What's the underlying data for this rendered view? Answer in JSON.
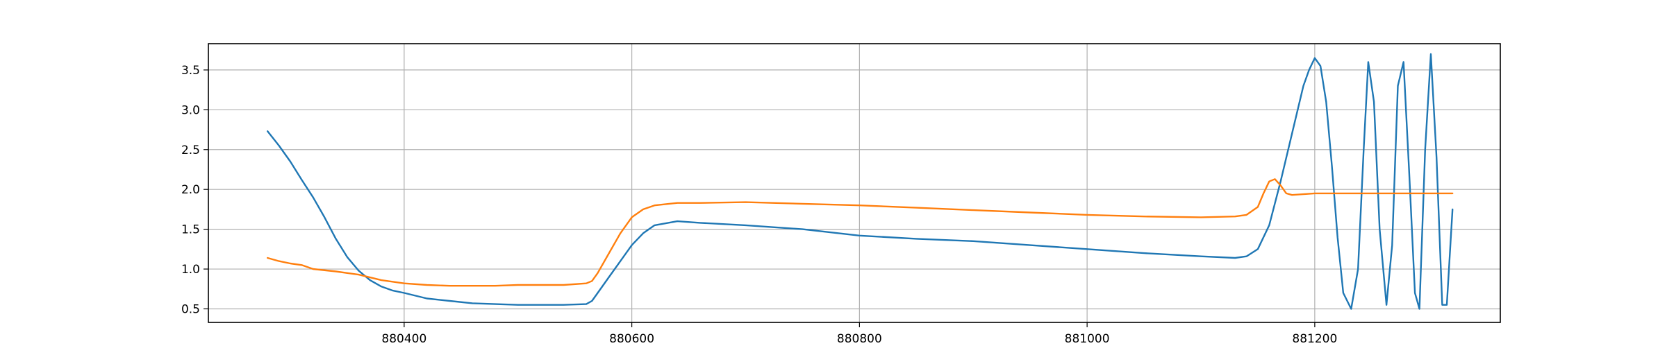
{
  "chart_data": {
    "type": "line",
    "title": "",
    "xlabel": "",
    "ylabel": "",
    "xlim": [
      880228,
      881363
    ],
    "ylim": [
      0.33,
      3.83
    ],
    "grid": true,
    "xticks": [
      880400,
      880600,
      880800,
      881000,
      881200
    ],
    "yticks": [
      0.5,
      1.0,
      1.5,
      2.0,
      2.5,
      3.0,
      3.5
    ],
    "xtick_labels": [
      "880400",
      "880600",
      "880800",
      "881000",
      "881200"
    ],
    "ytick_labels": [
      "0.5",
      "1.0",
      "1.5",
      "2.0",
      "2.5",
      "3.0",
      "3.5"
    ],
    "series": [
      {
        "color": "#1f77b4",
        "x": [
          880280,
          880290,
          880300,
          880310,
          880320,
          880330,
          880340,
          880350,
          880360,
          880370,
          880380,
          880390,
          880400,
          880420,
          880440,
          880460,
          880480,
          880500,
          880520,
          880540,
          880560,
          880565,
          880570,
          880580,
          880590,
          880600,
          880610,
          880620,
          880640,
          880660,
          880700,
          880750,
          880800,
          880850,
          880900,
          880950,
          881000,
          881050,
          881100,
          881130,
          881140,
          881150,
          881160,
          881170,
          881180,
          881190,
          881195,
          881200,
          881205,
          881210,
          881215,
          881220,
          881225,
          881232,
          881238,
          881243,
          881247,
          881252,
          881257,
          881263,
          881268,
          881273,
          881278,
          881283,
          881288,
          881292,
          881297,
          881302,
          881307,
          881312,
          881316,
          881321
        ],
        "y": [
          2.73,
          2.55,
          2.35,
          2.12,
          1.9,
          1.65,
          1.38,
          1.15,
          0.98,
          0.86,
          0.78,
          0.73,
          0.7,
          0.63,
          0.6,
          0.57,
          0.56,
          0.55,
          0.55,
          0.55,
          0.56,
          0.6,
          0.7,
          0.9,
          1.1,
          1.3,
          1.45,
          1.55,
          1.6,
          1.58,
          1.55,
          1.5,
          1.42,
          1.38,
          1.35,
          1.3,
          1.25,
          1.2,
          1.16,
          1.14,
          1.16,
          1.25,
          1.55,
          2.1,
          2.7,
          3.3,
          3.5,
          3.65,
          3.55,
          3.1,
          2.3,
          1.4,
          0.7,
          0.5,
          1.0,
          2.5,
          3.6,
          3.1,
          1.5,
          0.55,
          1.3,
          3.3,
          3.6,
          2.2,
          0.7,
          0.5,
          2.5,
          3.7,
          2.4,
          0.55,
          0.55,
          1.75
        ]
      },
      {
        "color": "#ff7f0e",
        "x": [
          880280,
          880290,
          880300,
          880310,
          880320,
          880340,
          880360,
          880380,
          880400,
          880420,
          880440,
          880460,
          880480,
          880500,
          880520,
          880540,
          880560,
          880565,
          880570,
          880580,
          880590,
          880600,
          880610,
          880620,
          880640,
          880660,
          880700,
          880750,
          880800,
          880850,
          880900,
          880950,
          881000,
          881050,
          881100,
          881130,
          881140,
          881150,
          881155,
          881160,
          881165,
          881170,
          881175,
          881180,
          881200,
          881250,
          881300,
          881321
        ],
        "y": [
          1.14,
          1.1,
          1.07,
          1.05,
          1.0,
          0.97,
          0.93,
          0.86,
          0.82,
          0.8,
          0.79,
          0.79,
          0.79,
          0.8,
          0.8,
          0.8,
          0.82,
          0.85,
          0.95,
          1.2,
          1.45,
          1.65,
          1.75,
          1.8,
          1.83,
          1.83,
          1.84,
          1.82,
          1.8,
          1.77,
          1.74,
          1.71,
          1.68,
          1.66,
          1.65,
          1.66,
          1.68,
          1.78,
          1.95,
          2.1,
          2.13,
          2.05,
          1.95,
          1.93,
          1.95,
          1.95,
          1.95,
          1.95
        ]
      }
    ]
  }
}
